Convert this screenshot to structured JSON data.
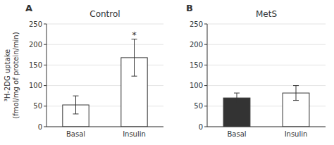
{
  "chart_data": [
    {
      "type": "bar",
      "title": "Control",
      "ylabel": "³H-2DG uptake\n(fmol/mg of protein/min)",
      "categories": [
        "Basal",
        "Insulin"
      ],
      "values": [
        53,
        168
      ],
      "errors": [
        22,
        45
      ],
      "colors": [
        "white",
        "white"
      ],
      "ylim": [
        0,
        250
      ],
      "yticks": [
        0,
        50,
        100,
        150,
        200,
        250
      ],
      "annotations": [
        {
          "text": "A"
        },
        {
          "text": "*",
          "x": "Insulin"
        }
      ]
    },
    {
      "type": "bar",
      "title": "MetS",
      "categories": [
        "Basal",
        "Insulin"
      ],
      "values": [
        70,
        82
      ],
      "errors": [
        12,
        18
      ],
      "colors": [
        "#333333",
        "white"
      ],
      "ylim": [
        0,
        250
      ],
      "yticks": [
        0,
        50,
        100,
        150,
        200,
        250
      ],
      "annotations": [
        {
          "text": "B"
        }
      ]
    }
  ]
}
